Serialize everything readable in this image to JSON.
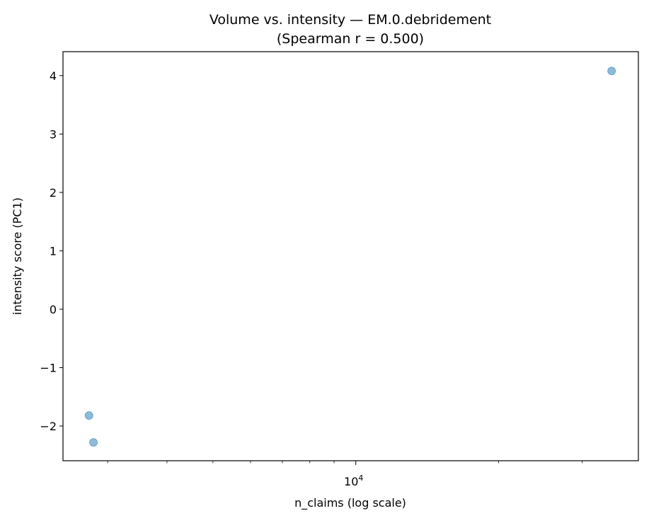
{
  "chart_data": {
    "type": "scatter",
    "title": "Volume vs. intensity — EM.0.debridement",
    "subtitle": "(Spearman r = 0.500)",
    "xlabel": "n_claims (log scale)",
    "ylabel": "intensity score (PC1)",
    "xscale": "log",
    "xlim": [
      2415,
      39400
    ],
    "ylim": [
      -2.594,
      4.41
    ],
    "x_major_ticks": [
      {
        "value": 10000,
        "base": "10",
        "exp": "4"
      }
    ],
    "x_minor_ticks": [
      3000,
      4000,
      5000,
      6000,
      7000,
      8000,
      9000,
      20000,
      30000
    ],
    "y_ticks": [
      -2,
      -1,
      0,
      1,
      2,
      3,
      4
    ],
    "y_tick_labels": [
      "−2",
      "−1",
      "0",
      "1",
      "2",
      "3",
      "4"
    ],
    "grid": false,
    "marker_color": "#1f77b4",
    "marker_alpha": 0.5,
    "points": [
      {
        "x": 2740,
        "y": -1.82
      },
      {
        "x": 2800,
        "y": -2.28
      },
      {
        "x": 34600,
        "y": 4.08
      }
    ]
  }
}
